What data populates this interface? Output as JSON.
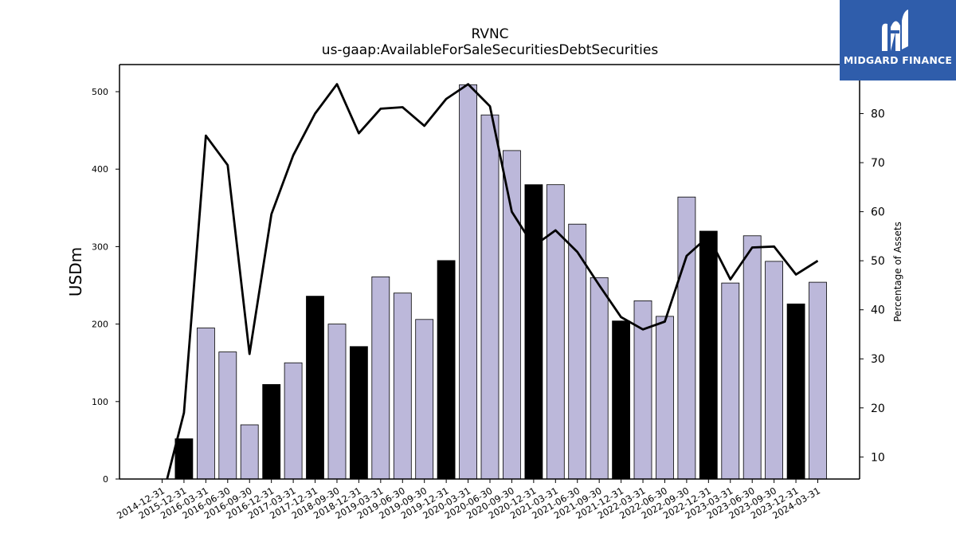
{
  "logo": {
    "text": "MIDGARD FINANCE",
    "icon": "midgard-m-logo-icon",
    "background": "#2f5dab"
  },
  "chart_data": {
    "type": "bar",
    "title": "RVNC",
    "subtitle": "us-gaap:AvailableForSaleSecuritiesDebtSecurities",
    "ylabel": "USDm",
    "y2label": "Percentage of Assets",
    "ylim": [
      0,
      535
    ],
    "y2lim": [
      5.5,
      90
    ],
    "yticks": [
      0,
      100,
      200,
      300,
      400,
      500
    ],
    "y2ticks": [
      10,
      20,
      30,
      40,
      50,
      60,
      70,
      80
    ],
    "categories": [
      "2014-12-31",
      "2015-12-31",
      "2016-03-31",
      "2016-06-30",
      "2016-09-30",
      "2016-12-31",
      "2017-03-31",
      "2017-12-31",
      "2018-09-30",
      "2018-12-31",
      "2019-03-31",
      "2019-06-30",
      "2019-09-30",
      "2019-12-31",
      "2020-03-31",
      "2020-06-30",
      "2020-09-30",
      "2020-12-31",
      "2021-03-31",
      "2021-06-30",
      "2021-09-30",
      "2021-12-31",
      "2022-03-31",
      "2022-06-30",
      "2022-09-30",
      "2022-12-31",
      "2023-03-31",
      "2023-06-30",
      "2023-09-30",
      "2023-12-31",
      "2024-03-31"
    ],
    "bars": [
      null,
      52,
      195,
      164,
      70,
      122,
      150,
      236,
      200,
      171,
      261,
      240,
      206,
      282,
      509,
      470,
      424,
      380,
      380,
      329,
      260,
      204,
      230,
      210,
      364,
      320,
      253,
      314,
      281,
      226,
      254
    ],
    "bar_highlight": [
      false,
      true,
      false,
      false,
      false,
      true,
      false,
      true,
      false,
      true,
      false,
      false,
      false,
      true,
      false,
      false,
      false,
      true,
      false,
      false,
      false,
      true,
      false,
      false,
      false,
      true,
      false,
      false,
      false,
      true,
      false
    ],
    "line": [
      1.5,
      19,
      75.5,
      69.5,
      31,
      59.5,
      71.5,
      80,
      86,
      76,
      81,
      81.3,
      77.5,
      83,
      86,
      81.5,
      60,
      53,
      56.2,
      51.8,
      45,
      38.5,
      36,
      37.6,
      51,
      55,
      46.2,
      52.7,
      52.9,
      47.2,
      50
    ],
    "colors": {
      "bar": "#bcb8da",
      "bar_highlight": "#000000",
      "line": "#000000"
    },
    "grid": false,
    "legend": "none"
  }
}
